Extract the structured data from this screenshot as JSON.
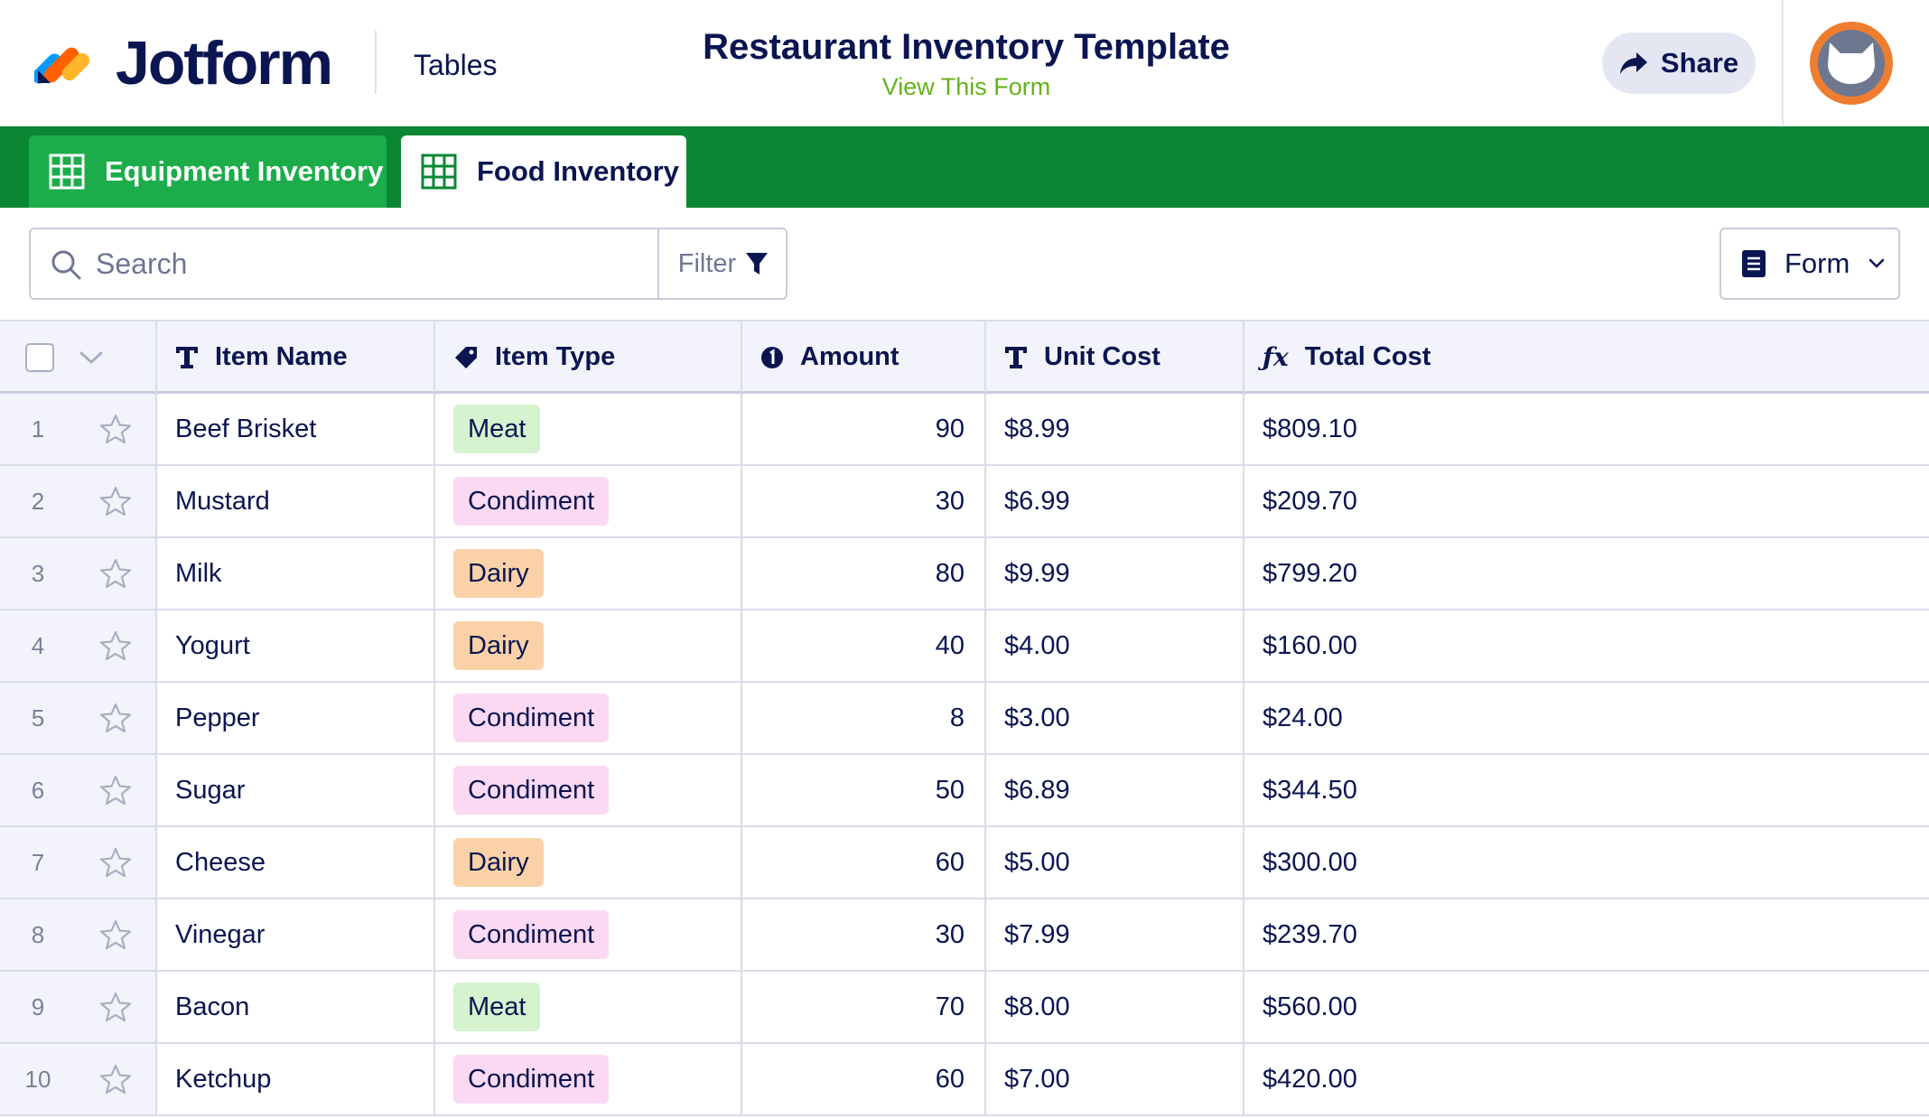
{
  "header": {
    "brand": "Jotform",
    "tables_label": "Tables",
    "title": "Restaurant Inventory Template",
    "view_link": "View This Form",
    "share_label": "Share"
  },
  "tabs": [
    {
      "label": "Equipment Inventory",
      "active": false
    },
    {
      "label": "Food Inventory",
      "active": true
    }
  ],
  "toolbar": {
    "search_placeholder": "Search",
    "search_value": "",
    "filter_label": "Filter",
    "form_label": "Form"
  },
  "columns": [
    {
      "label": "Item Name",
      "icon": "text-icon"
    },
    {
      "label": "Item Type",
      "icon": "tag-icon"
    },
    {
      "label": "Amount",
      "icon": "number-icon"
    },
    {
      "label": "Unit Cost",
      "icon": "text-icon"
    },
    {
      "label": "Total Cost",
      "icon": "formula-icon"
    }
  ],
  "type_colors": {
    "Meat": "#d5f3cf",
    "Condiment": "#fbd9f3",
    "Dairy": "#fbd2a8"
  },
  "rows": [
    {
      "index": "1",
      "name": "Beef Brisket",
      "type": "Meat",
      "amount": "90",
      "unit_cost": "$8.99",
      "total_cost": "$809.10"
    },
    {
      "index": "2",
      "name": "Mustard",
      "type": "Condiment",
      "amount": "30",
      "unit_cost": "$6.99",
      "total_cost": "$209.70"
    },
    {
      "index": "3",
      "name": "Milk",
      "type": "Dairy",
      "amount": "80",
      "unit_cost": "$9.99",
      "total_cost": "$799.20"
    },
    {
      "index": "4",
      "name": "Yogurt",
      "type": "Dairy",
      "amount": "40",
      "unit_cost": "$4.00",
      "total_cost": "$160.00"
    },
    {
      "index": "5",
      "name": "Pepper",
      "type": "Condiment",
      "amount": "8",
      "unit_cost": "$3.00",
      "total_cost": "$24.00"
    },
    {
      "index": "6",
      "name": "Sugar",
      "type": "Condiment",
      "amount": "50",
      "unit_cost": "$6.89",
      "total_cost": "$344.50"
    },
    {
      "index": "7",
      "name": "Cheese",
      "type": "Dairy",
      "amount": "60",
      "unit_cost": "$5.00",
      "total_cost": "$300.00"
    },
    {
      "index": "8",
      "name": "Vinegar",
      "type": "Condiment",
      "amount": "30",
      "unit_cost": "$7.99",
      "total_cost": "$239.70"
    },
    {
      "index": "9",
      "name": "Bacon",
      "type": "Meat",
      "amount": "70",
      "unit_cost": "$8.00",
      "total_cost": "$560.00"
    },
    {
      "index": "10",
      "name": "Ketchup",
      "type": "Condiment",
      "amount": "60",
      "unit_cost": "$7.00",
      "total_cost": "$420.00"
    }
  ]
}
